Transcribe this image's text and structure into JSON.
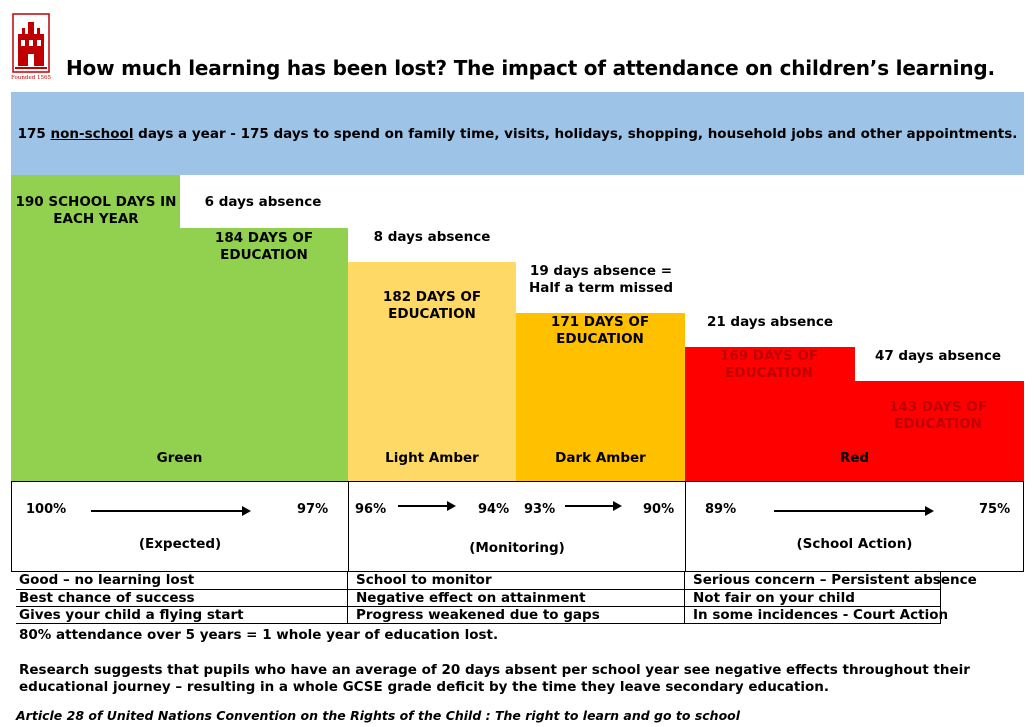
{
  "logo": {
    "caption": "Founded 1565",
    "icon": "castle-crest-icon",
    "color": "#c00000"
  },
  "title": "How much learning has been lost?  The impact of attendance on children’s learning.",
  "banner": {
    "prefix": "175 ",
    "underlined": "non-school",
    "suffix": " days a year - 175 days to spend on family time, visits, holidays, shopping, household jobs and other appointments."
  },
  "steps": {
    "base_label": "190 SCHOOL DAYS IN EACH YEAR",
    "absences": [
      "6 days absence",
      "8 days absence",
      "19 days absence = Half a term missed",
      "21 days absence",
      "47 days absence"
    ],
    "education": [
      "184 DAYS OF EDUCATION",
      "182 DAYS OF EDUCATION",
      "171 DAYS OF EDUCATION",
      "169 DAYS OF EDUCATION",
      "143 DAYS OF EDUCATION"
    ],
    "days": [
      190,
      184,
      182,
      171,
      169,
      143
    ]
  },
  "bands": {
    "green": "Green",
    "light_amber": "Light Amber",
    "dark_amber": "Dark Amber",
    "red": "Red"
  },
  "colors": {
    "green": "#92d050",
    "light_amber": "#ffd966",
    "dark_amber": "#ffc000",
    "red": "#ff0000",
    "banner": "#9dc3e6"
  },
  "scale": {
    "green": {
      "from": "100%",
      "to": "97%",
      "zone": "(Expected)"
    },
    "amber_light": {
      "from": "96%",
      "to": "94%"
    },
    "amber_dark": {
      "from": "93%",
      "to": "90%"
    },
    "amber_zone": "(Monitoring)",
    "red": {
      "from": "89%",
      "to": "75%",
      "zone": "(School Action)"
    }
  },
  "descriptions": {
    "green": [
      "Good – no learning lost",
      "Best chance of success",
      "Gives your child a flying start"
    ],
    "amber": [
      "School to monitor",
      "Negative effect on attainment",
      "Progress weakened due to gaps"
    ],
    "red": [
      "Serious concern – Persistent absence",
      "Not fair on your child",
      "In some incidences - Court Action"
    ]
  },
  "notes": {
    "five_years": "80% attendance over 5 years = 1 whole year of education lost.",
    "research_1": "Research suggests that pupils who have an average of 20 days absent per school year see negative effects throughout their",
    "research_2": "educational journey – resulting in a whole GCSE grade deficit by the time they leave secondary education."
  },
  "footer": "Article 28 of United Nations Convention on the Rights of the Child : The right to learn and go to school"
}
